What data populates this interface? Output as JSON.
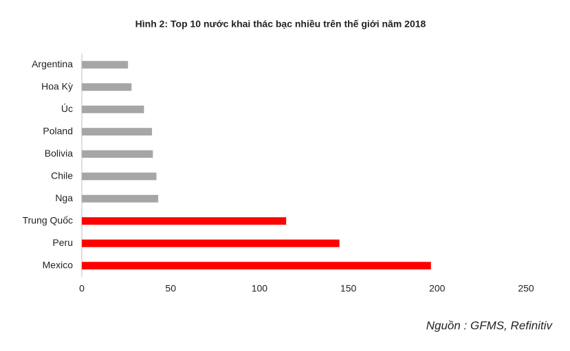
{
  "chart_data": {
    "type": "bar",
    "orientation": "horizontal",
    "title": "Hình 2: Top 10 nước khai thác bạc nhiều trên thế giới năm 2018",
    "categories": [
      "Argentina",
      "Hoa Kỳ",
      "Úc",
      "Poland",
      "Bolivia",
      "Chile",
      "Nga",
      "Trung Quốc",
      "Peru",
      "Mexico"
    ],
    "values": [
      26,
      28,
      35,
      39.5,
      40,
      42,
      43,
      115,
      145,
      196.5
    ],
    "colors": [
      "#a6a6a6",
      "#a6a6a6",
      "#a6a6a6",
      "#a6a6a6",
      "#a6a6a6",
      "#a6a6a6",
      "#a6a6a6",
      "#ff0000",
      "#ff0000",
      "#ff0000"
    ],
    "xlim": [
      0,
      250
    ],
    "xticks": [
      0,
      50,
      100,
      150,
      200,
      250
    ],
    "grid": false,
    "source": "Nguồn : GFMS, Refinitiv"
  }
}
